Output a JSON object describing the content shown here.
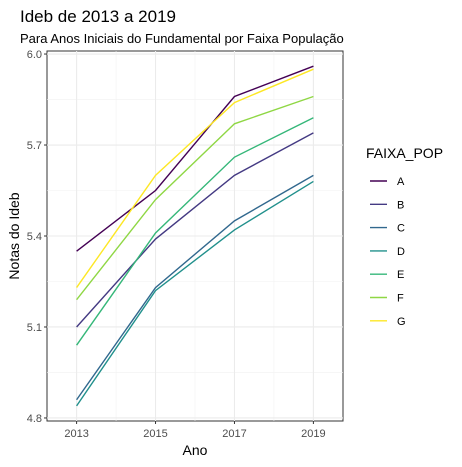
{
  "chart_data": {
    "type": "line",
    "title": "Ideb de 2013 a 2019",
    "subtitle": "Para Anos Iniciais do Fundamental por Faixa População",
    "xlabel": "Ano",
    "ylabel": "Notas do Ideb",
    "x": [
      2013,
      2015,
      2017,
      2019
    ],
    "xlim": [
      2012.25,
      2019.75
    ],
    "ylim": [
      4.79,
      6.01
    ],
    "x_ticks": [
      "2013",
      "2015",
      "2017",
      "2019"
    ],
    "y_ticks": [
      "4.8",
      "5.1",
      "5.4",
      "5.7",
      "6.0"
    ],
    "y_tick_values": [
      4.8,
      5.1,
      5.4,
      5.7,
      6.0
    ],
    "grid": true,
    "legend": {
      "title": "FAIXA_POP",
      "position": "right"
    },
    "series": [
      {
        "name": "A",
        "color": "#440154",
        "values": [
          5.35,
          5.55,
          5.86,
          5.96
        ]
      },
      {
        "name": "B",
        "color": "#443A83",
        "values": [
          5.1,
          5.39,
          5.6,
          5.74
        ]
      },
      {
        "name": "C",
        "color": "#31688E",
        "values": [
          4.86,
          5.23,
          5.45,
          5.6
        ]
      },
      {
        "name": "D",
        "color": "#21908C",
        "values": [
          4.84,
          5.22,
          5.42,
          5.58
        ]
      },
      {
        "name": "E",
        "color": "#35B779",
        "values": [
          5.04,
          5.41,
          5.66,
          5.79
        ]
      },
      {
        "name": "F",
        "color": "#8FD744",
        "values": [
          5.19,
          5.52,
          5.77,
          5.86
        ]
      },
      {
        "name": "G",
        "color": "#FDE725",
        "values": [
          5.23,
          5.6,
          5.84,
          5.95
        ]
      }
    ]
  }
}
